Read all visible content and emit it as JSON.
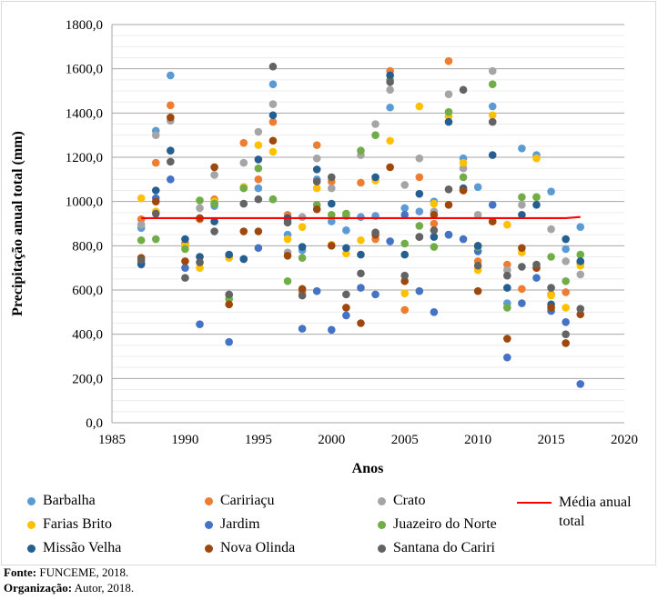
{
  "chart_data": {
    "type": "scatter",
    "xlabel": "Anos",
    "ylabel": "Precipitação anual total (mm)",
    "xlim": [
      1985,
      2020
    ],
    "ylim": [
      0,
      1800
    ],
    "xticks": [
      "1985",
      "1990",
      "1995",
      "2000",
      "2005",
      "2010",
      "2015",
      "2020"
    ],
    "yticks": [
      "0,0",
      "200,0",
      "400,0",
      "600,0",
      "800,0",
      "1000,0",
      "1200,0",
      "1400,0",
      "1600,0",
      "1800,0"
    ],
    "grid": true,
    "legend_position": "bottom",
    "x": [
      1987,
      1988,
      1989,
      1990,
      1991,
      1992,
      1993,
      1994,
      1995,
      1996,
      1997,
      1998,
      1999,
      2000,
      2001,
      2002,
      2003,
      2004,
      2005,
      2006,
      2007,
      2008,
      2009,
      2010,
      2011,
      2012,
      2013,
      2014,
      2015,
      2016,
      2017
    ],
    "series": [
      {
        "name": "Barbalha",
        "color": "#5B9BD5",
        "values": [
          880,
          1320,
          1570,
          810,
          750,
          980,
          755,
          1065,
          1060,
          1530,
          850,
          780,
          1100,
          910,
          870,
          930,
          935,
          1425,
          970,
          955,
          1000,
          850,
          1195,
          1065,
          1430,
          540,
          1240,
          1210,
          1045,
          785,
          885
        ]
      },
      {
        "name": "Caririaçu",
        "color": "#ED7D31",
        "values": [
          920,
          1175,
          1435,
          810,
          920,
          1010,
          750,
          1265,
          1100,
          1360,
          940,
          590,
          1255,
          1090,
          935,
          1085,
          830,
          1590,
          510,
          1110,
          900,
          1635,
          1050,
          730,
          910,
          715,
          605,
          700,
          580,
          590,
          720
        ]
      },
      {
        "name": "Crato",
        "color": "#A5A5A5",
        "values": [
          895,
          1300,
          1365,
          795,
          970,
          1120,
          575,
          1175,
          1315,
          1440,
          770,
          930,
          1195,
          1060,
          935,
          1210,
          1350,
          1505,
          1075,
          1195,
          955,
          1485,
          1150,
          940,
          1590,
          690,
          985,
          1020,
          875,
          730,
          670
        ]
      },
      {
        "name": "Farias Brito",
        "color": "#FFC000",
        "values": [
          1015,
          955,
          null,
          800,
          700,
          1000,
          745,
          1065,
          1255,
          1225,
          830,
          885,
          1060,
          805,
          765,
          825,
          1095,
          1275,
          585,
          1430,
          990,
          1385,
          1175,
          690,
          1390,
          895,
          770,
          1195,
          575,
          520,
          710
        ]
      },
      {
        "name": "Jardim",
        "color": "#4472C4",
        "values": [
          715,
          1015,
          1100,
          700,
          445,
          990,
          365,
          740,
          790,
          1010,
          915,
          425,
          595,
          420,
          485,
          610,
          580,
          820,
          940,
          595,
          500,
          850,
          830,
          775,
          985,
          295,
          540,
          655,
          505,
          455,
          175
        ]
      },
      {
        "name": "Juazeiro do Norte",
        "color": "#70AD47",
        "values": [
          825,
          830,
          null,
          785,
          1005,
          990,
          560,
          1060,
          1150,
          1010,
          640,
          745,
          985,
          940,
          945,
          1230,
          1300,
          1550,
          810,
          890,
          795,
          1405,
          1110,
          795,
          1530,
          520,
          1020,
          1020,
          750,
          640,
          760
        ]
      },
      {
        "name": "Missão Velha",
        "color": "#255E91",
        "values": [
          720,
          1050,
          1230,
          830,
          750,
          910,
          760,
          740,
          1190,
          1390,
          925,
          795,
          1145,
          990,
          790,
          760,
          1110,
          1570,
          760,
          1035,
          840,
          1360,
          1060,
          800,
          1210,
          610,
          940,
          985,
          535,
          830,
          730
        ]
      },
      {
        "name": "Nova Olinda",
        "color": "#9E480E",
        "values": [
          745,
          1000,
          1380,
          730,
          925,
          1155,
          535,
          865,
          865,
          1275,
          755,
          605,
          965,
          800,
          520,
          450,
          850,
          1155,
          640,
          840,
          940,
          985,
          1050,
          595,
          910,
          380,
          790,
          700,
          520,
          360,
          490
        ]
      },
      {
        "name": "Santana do Cariri",
        "color": "#636363",
        "values": [
          735,
          945,
          1180,
          655,
          725,
          865,
          580,
          990,
          1010,
          1610,
          905,
          575,
          1090,
          1110,
          580,
          675,
          860,
          1540,
          665,
          840,
          870,
          1055,
          1505,
          710,
          1360,
          665,
          705,
          715,
          610,
          400,
          515
        ]
      },
      {
        "name": "Média anual total",
        "color": "#FF0000",
        "type": "line",
        "x": [
          1987,
          2016,
          2017
        ],
        "values": [
          925,
          925,
          930
        ]
      }
    ]
  },
  "legend": [
    "Barbalha",
    "Caririaçu",
    "Crato",
    "Média anual total",
    "Farias Brito",
    "Jardim",
    "Juazeiro do Norte",
    "Missão Velha",
    "Nova Olinda",
    "Santana do Cariri"
  ],
  "footer": {
    "source_label": "Fonte:",
    "source": " FUNCEME, 2018.",
    "org_label": "Organização:",
    "org": " Autor, 2018."
  }
}
